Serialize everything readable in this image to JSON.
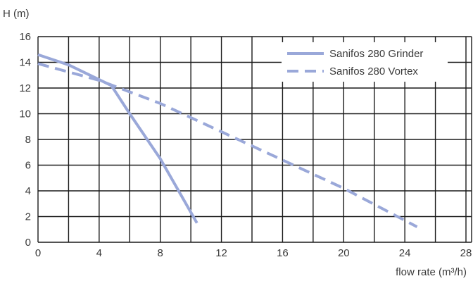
{
  "chart_data": {
    "type": "line",
    "xlabel": "flow rate (m³/h)",
    "ylabel": "H (m)",
    "xlim": [
      0,
      28
    ],
    "ylim": [
      0,
      16
    ],
    "x_ticks": [
      "0",
      "4",
      "8",
      "12",
      "16",
      "20",
      "24",
      "28"
    ],
    "y_ticks": [
      "0",
      "2",
      "4",
      "6",
      "8",
      "10",
      "12",
      "14",
      "16"
    ],
    "grid": true,
    "legend_position": "top-right",
    "line_color": "#9aa8d9",
    "series": [
      {
        "name": "Sanifos 280 Grinder",
        "style": "solid",
        "x": [
          0,
          2,
          4.8,
          6,
          8,
          10.4
        ],
        "y": [
          14.6,
          13.8,
          12.2,
          10,
          6.5,
          1.5
        ]
      },
      {
        "name": "Sanifos 280 Vortex",
        "style": "dashed",
        "x": [
          0,
          4,
          8,
          12,
          16,
          20,
          24.8
        ],
        "y": [
          13.9,
          12.6,
          10.8,
          8.6,
          6.4,
          4.2,
          1.2
        ]
      }
    ]
  }
}
